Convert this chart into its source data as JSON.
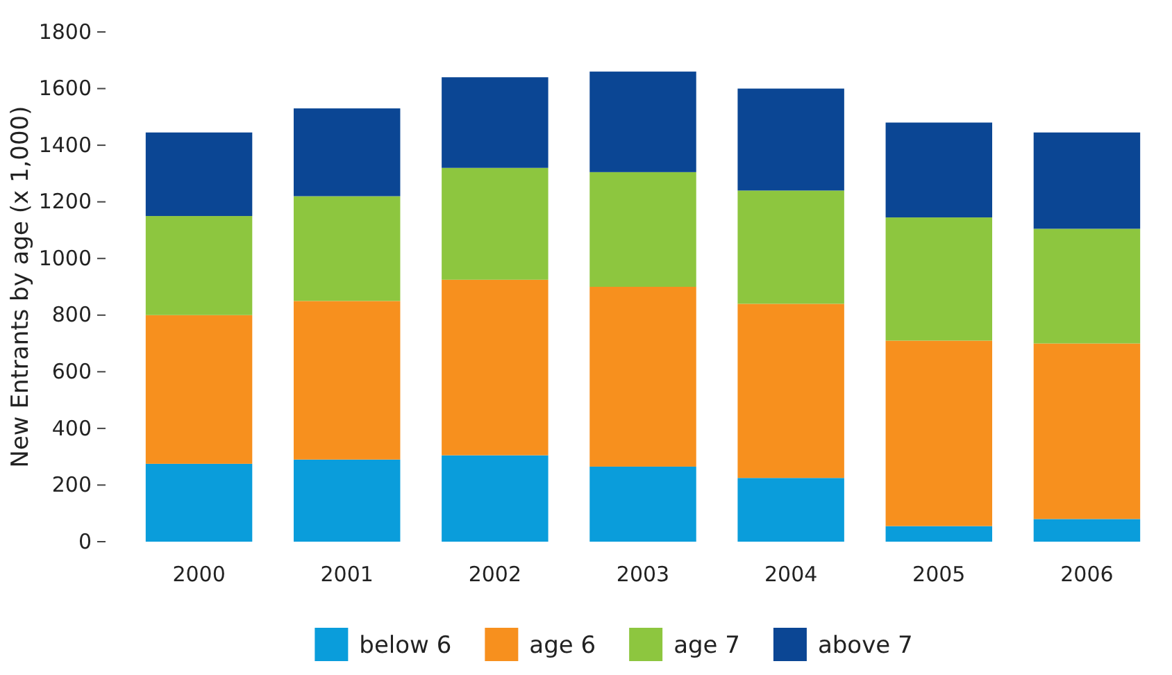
{
  "chart_data": {
    "type": "bar",
    "stacked": true,
    "ylabel": "New Entrants by age (x 1,000)",
    "categories": [
      "2000",
      "2001",
      "2002",
      "2003",
      "2004",
      "2005",
      "2006"
    ],
    "series": [
      {
        "name": "below 6",
        "color": "#0a9ddb",
        "values": [
          275,
          290,
          305,
          265,
          225,
          55,
          80
        ]
      },
      {
        "name": "age 6",
        "color": "#f7901e",
        "values": [
          525,
          560,
          620,
          635,
          615,
          655,
          620
        ]
      },
      {
        "name": "age 7",
        "color": "#8dc63f",
        "values": [
          350,
          370,
          395,
          405,
          400,
          435,
          405
        ]
      },
      {
        "name": "above 7",
        "color": "#0b4694",
        "values": [
          295,
          310,
          320,
          355,
          360,
          335,
          340
        ]
      }
    ],
    "ylim": [
      0,
      1800
    ],
    "yticks": [
      0,
      200,
      400,
      600,
      800,
      1000,
      1200,
      1400,
      1600,
      1800
    ],
    "grid": false,
    "legend": "bottom"
  }
}
